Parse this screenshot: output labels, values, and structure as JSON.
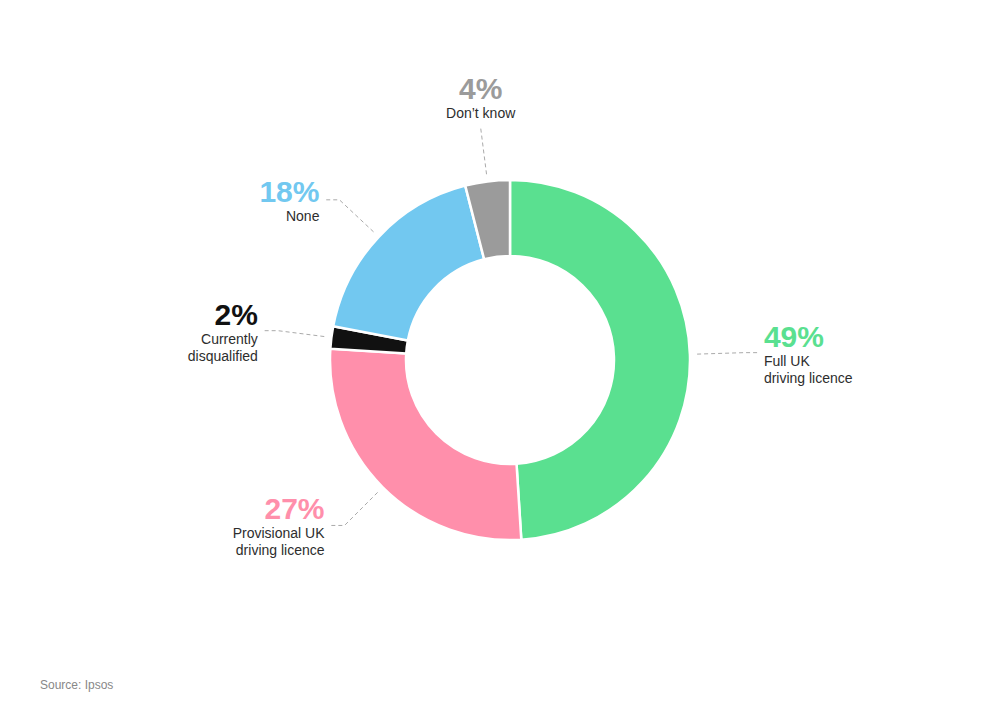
{
  "chart_data": {
    "type": "donut",
    "categories": [
      "Full UK\ndriving licence",
      "Provisional UK\ndriving licence",
      "Currently\ndisqualified",
      "None",
      "Don’t know"
    ],
    "values": [
      49,
      27,
      2,
      18,
      4
    ],
    "value_labels": [
      "49%",
      "27%",
      "2%",
      "18%",
      "4%"
    ],
    "colors": [
      "#5AE090",
      "#FF8FAB",
      "#111111",
      "#72C8F0",
      "#9B9B9B"
    ],
    "data_labels": true,
    "annotations": [
      "Source: Ipsos"
    ]
  }
}
